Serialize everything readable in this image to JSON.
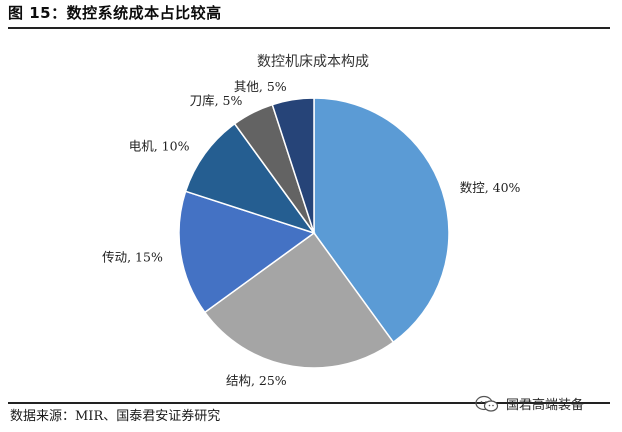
{
  "figure_title": "图 15：数控系统成本占比较高",
  "source_note": "数据来源：MIR、国泰君安证券研究",
  "watermark": "国君高端装备",
  "chart_data": {
    "type": "pie",
    "title": "数控机床成本构成",
    "slices": [
      {
        "label": "数控",
        "value": 40,
        "display": "数控, 40%",
        "color": "#5b9bd5"
      },
      {
        "label": "结构",
        "value": 25,
        "display": "结构, 25%",
        "color": "#a5a5a5"
      },
      {
        "label": "传动",
        "value": 15,
        "display": "传动, 15%",
        "color": "#4472c4"
      },
      {
        "label": "电机",
        "value": 10,
        "display": "电机, 10%",
        "color": "#255e91"
      },
      {
        "label": "刀库",
        "value": 5,
        "display": "刀库, 5%",
        "color": "#636363"
      },
      {
        "label": "其他",
        "value": 5,
        "display": "其他, 5%",
        "color": "#264478"
      }
    ],
    "legend": "none"
  }
}
